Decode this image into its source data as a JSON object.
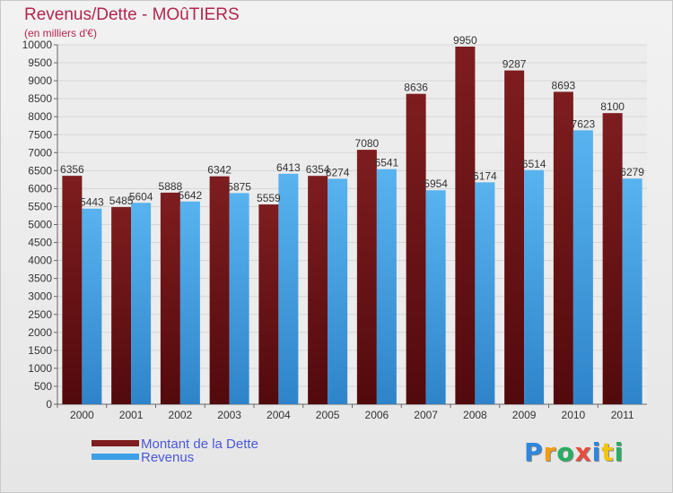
{
  "colors": {
    "dette": "#7e1d1f",
    "revenus": "#3d9fe6",
    "title": "#b3264f",
    "legend_text": "#4b57d6"
  },
  "chart_data": {
    "type": "bar",
    "title": "Revenus/Dette - MOûTIERS",
    "subtitle": "(en milliers d'€)",
    "categories": [
      "2000",
      "2001",
      "2002",
      "2003",
      "2004",
      "2005",
      "2006",
      "2007",
      "2008",
      "2009",
      "2010",
      "2011"
    ],
    "series": [
      {
        "name": "Montant de la Dette",
        "values": [
          6356,
          5485,
          5888,
          6342,
          5559,
          6354,
          7080,
          8636,
          9950,
          9287,
          8693,
          8100
        ]
      },
      {
        "name": "Revenus",
        "values": [
          5443,
          5604,
          5642,
          5875,
          6413,
          6274,
          6541,
          5954,
          6174,
          6514,
          7623,
          6279
        ]
      }
    ],
    "ylim": [
      0,
      10000
    ],
    "yticks": [
      0,
      500,
      1000,
      1500,
      2000,
      2500,
      3000,
      3500,
      4000,
      4500,
      5000,
      5500,
      6000,
      6500,
      7000,
      7500,
      8000,
      8500,
      9000,
      9500,
      10000
    ],
    "grid": true,
    "legend_position": "bottom-left"
  },
  "logo": {
    "letters": [
      "P",
      "r",
      "o",
      "x",
      "i",
      "t",
      "i"
    ],
    "colors": [
      "#2e86de",
      "#f39c12",
      "#27ae60",
      "#e74c3c",
      "#2e86de",
      "#f1c40f",
      "#27ae60"
    ]
  }
}
